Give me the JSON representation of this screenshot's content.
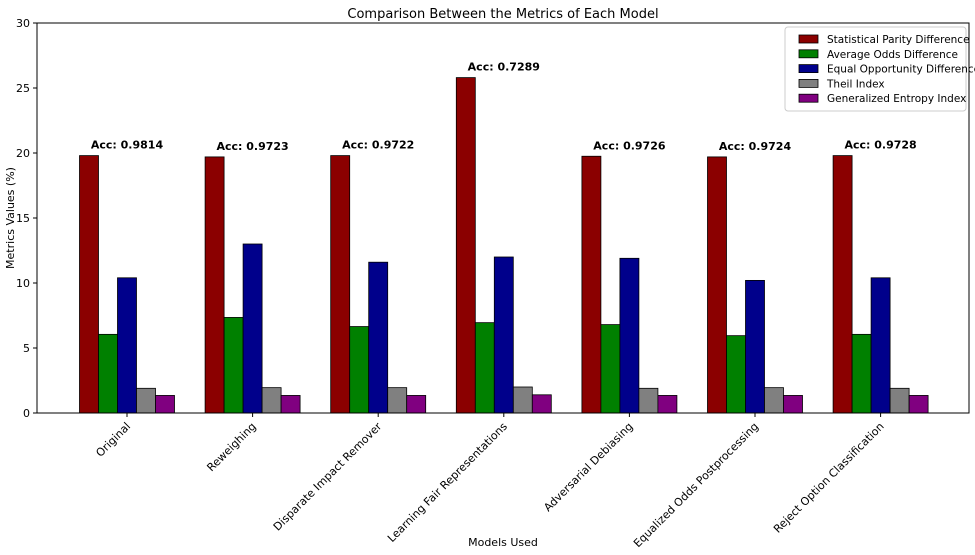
{
  "chart_data": {
    "type": "bar",
    "title": "Comparison Between the Metrics of Each Model",
    "xlabel": "Models Used",
    "ylabel": "Metrics Values (%)",
    "ylim": [
      0,
      30
    ],
    "yticks": [
      0,
      5,
      10,
      15,
      20,
      25,
      30
    ],
    "legend_position": "top-right",
    "categories": [
      "Original",
      "Reweighing",
      "Disparate Impact Remover",
      "Learning Fair Representations",
      "Adversarial Debiasing",
      "Equalized Odds Postprocessing",
      "Reject Option Classification"
    ],
    "accuracy_labels": [
      "Acc: 0.9814",
      "Acc: 0.9723",
      "Acc: 0.9722",
      "Acc: 0.7289",
      "Acc: 0.9726",
      "Acc: 0.9724",
      "Acc: 0.9728"
    ],
    "series": [
      {
        "name": "Statistical Parity Difference",
        "color": "#8b0000",
        "values": [
          19.8,
          19.7,
          19.8,
          25.8,
          19.75,
          19.7,
          19.8
        ]
      },
      {
        "name": "Average Odds Difference",
        "color": "#008000",
        "values": [
          6.05,
          7.35,
          6.65,
          6.95,
          6.8,
          5.95,
          6.05
        ]
      },
      {
        "name": "Equal Opportunity Difference",
        "color": "#00008b",
        "values": [
          10.4,
          13.0,
          11.6,
          12.0,
          11.9,
          10.2,
          10.4
        ]
      },
      {
        "name": "Theil Index",
        "color": "#808080",
        "values": [
          1.9,
          1.95,
          1.95,
          2.0,
          1.9,
          1.95,
          1.9
        ]
      },
      {
        "name": "Generalized Entropy Index",
        "color": "#800080",
        "values": [
          1.35,
          1.35,
          1.35,
          1.4,
          1.35,
          1.35,
          1.35
        ]
      }
    ]
  }
}
